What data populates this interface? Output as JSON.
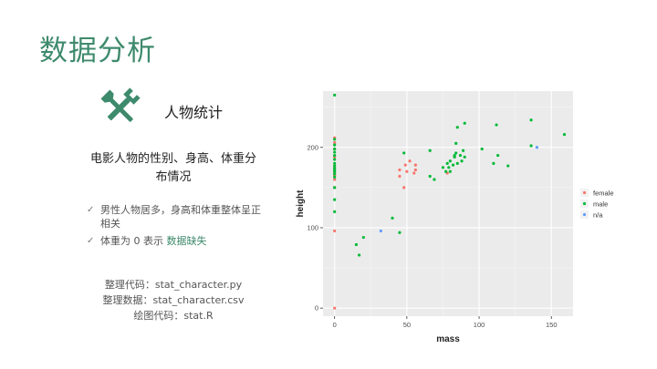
{
  "slide": {
    "title": "数据分析",
    "heading": "人物统计",
    "description": "电影人物的性别、身高、体重分布情况",
    "bullets": [
      {
        "check": "✓",
        "text": "男性人物居多，身高和体重整体呈正相关"
      },
      {
        "check": "✓",
        "text_before": "体重为 0 表示 ",
        "highlight": "数据缺失"
      }
    ],
    "files": [
      "整理代码：stat_character.py",
      "整理数据：stat_character.csv",
      "绘图代码：stat.R"
    ],
    "icon": "tools-icon",
    "accent_color": "#3e8a6c"
  },
  "chart_data": {
    "type": "scatter",
    "xlabel": "mass",
    "ylabel": "height",
    "xlim": [
      -8,
      165
    ],
    "ylim": [
      -10,
      270
    ],
    "xticks": [
      0,
      50,
      100,
      150
    ],
    "yticks": [
      0,
      100,
      200
    ],
    "grid": true,
    "background": "#ebebeb",
    "legend_position": "right",
    "series": [
      {
        "name": "female",
        "color": "#f8766d",
        "points": [
          [
            0,
            212
          ],
          [
            0,
            206
          ],
          [
            0,
            198
          ],
          [
            0,
            188
          ],
          [
            0,
            176
          ],
          [
            0,
            170
          ],
          [
            0,
            168
          ],
          [
            0,
            165
          ],
          [
            0,
            160
          ],
          [
            0,
            150
          ],
          [
            0,
            96
          ],
          [
            0,
            0
          ],
          [
            45,
            164
          ],
          [
            45,
            172
          ],
          [
            48,
            150
          ],
          [
            49,
            178
          ],
          [
            50,
            170
          ],
          [
            52,
            183
          ],
          [
            55,
            168
          ],
          [
            56,
            172
          ],
          [
            56,
            178
          ],
          [
            78,
            168
          ]
        ]
      },
      {
        "name": "male",
        "color": "#00ba38",
        "points": [
          [
            0,
            265
          ],
          [
            0,
            210
          ],
          [
            0,
            203
          ],
          [
            0,
            198
          ],
          [
            0,
            194
          ],
          [
            0,
            190
          ],
          [
            0,
            185
          ],
          [
            0,
            180
          ],
          [
            0,
            177
          ],
          [
            0,
            174
          ],
          [
            0,
            172
          ],
          [
            0,
            170
          ],
          [
            0,
            167
          ],
          [
            0,
            163
          ],
          [
            0,
            150
          ],
          [
            0,
            135
          ],
          [
            0,
            120
          ],
          [
            15,
            79
          ],
          [
            17,
            66
          ],
          [
            20,
            88
          ],
          [
            40,
            112
          ],
          [
            45,
            94
          ],
          [
            48,
            193
          ],
          [
            66,
            196
          ],
          [
            66,
            164
          ],
          [
            69,
            160
          ],
          [
            75,
            175
          ],
          [
            77,
            170
          ],
          [
            78,
            180
          ],
          [
            79,
            175
          ],
          [
            80,
            183
          ],
          [
            80,
            170
          ],
          [
            82,
            178
          ],
          [
            83,
            188
          ],
          [
            83,
            190
          ],
          [
            84,
            193
          ],
          [
            84,
            205
          ],
          [
            85,
            180
          ],
          [
            85,
            225
          ],
          [
            87,
            190
          ],
          [
            88,
            183
          ],
          [
            89,
            196
          ],
          [
            90,
            230
          ],
          [
            90,
            188
          ],
          [
            102,
            198
          ],
          [
            110,
            180
          ],
          [
            112,
            228
          ],
          [
            113,
            190
          ],
          [
            120,
            177
          ],
          [
            136,
            234
          ],
          [
            136,
            202
          ],
          [
            159,
            216
          ]
        ]
      },
      {
        "name": "n/a",
        "color": "#619cff",
        "points": [
          [
            32,
            96
          ],
          [
            140,
            200
          ]
        ]
      }
    ]
  }
}
